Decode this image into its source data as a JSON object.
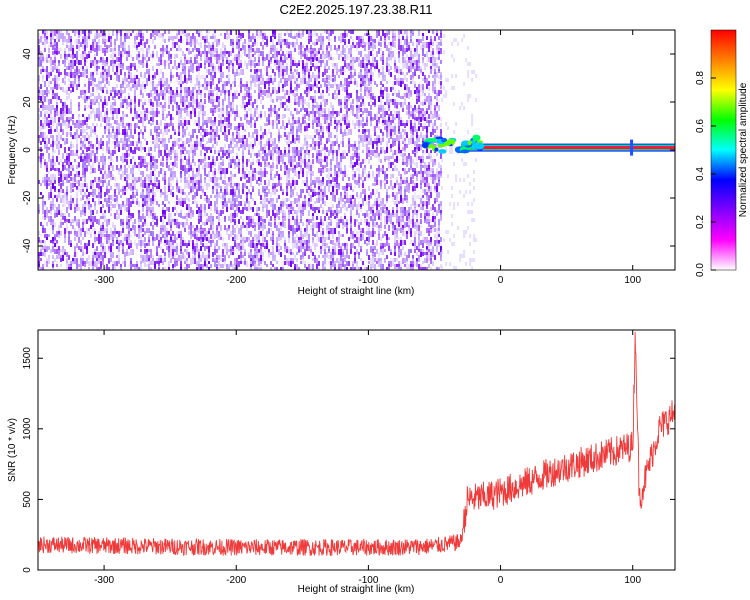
{
  "title": "C2E2.2025.197.23.38.R11",
  "colors": {
    "snr_line": "#f03a3a",
    "axis": "#000000",
    "background": "#ffffff"
  },
  "chart_data": [
    {
      "type": "heatmap",
      "xlabel": "Height of straight line (km)",
      "ylabel": "Frequency (Hz)",
      "xlim": [
        -350,
        132
      ],
      "ylim": [
        -50,
        50
      ],
      "xticks": [
        -300,
        -200,
        -100,
        0,
        100
      ],
      "yticks": [
        -40,
        -20,
        0,
        20,
        40
      ],
      "grid": false,
      "noise_region_x": [
        -350,
        -45
      ],
      "signal_track": {
        "x_range": [
          -60,
          132
        ],
        "frequency": 1
      },
      "colorbar": {
        "label": "Normalized spectral amplitude",
        "range": [
          0,
          1
        ],
        "ticks": [
          0.0,
          0.2,
          0.4,
          0.6,
          0.8
        ],
        "tick_labels": [
          "0.0",
          "0.2",
          "0.4",
          "0.6",
          "0.8"
        ],
        "colormap": [
          "#ffffff",
          "#ff00ff",
          "#8000ff",
          "#0000ff",
          "#00ffff",
          "#00ff00",
          "#ffff00",
          "#ff8000",
          "#ff0000"
        ]
      }
    },
    {
      "type": "line",
      "xlabel": "Height of straight line (km)",
      "ylabel": "SNR (10 * v/v)",
      "xlim": [
        -350,
        132
      ],
      "ylim": [
        0,
        1700
      ],
      "xticks": [
        -300,
        -200,
        -100,
        0,
        100
      ],
      "yticks": [
        0,
        500,
        1000,
        1500
      ],
      "grid": false,
      "series": [
        {
          "x": [
            -350,
            -320,
            -280,
            -240,
            -200,
            -160,
            -120,
            -80,
            -50,
            -30,
            -25,
            -10,
            0,
            20,
            40,
            60,
            80,
            100,
            102,
            105,
            120,
            132
          ],
          "y": [
            180,
            175,
            170,
            165,
            160,
            160,
            160,
            160,
            170,
            200,
            500,
            520,
            550,
            620,
            700,
            760,
            820,
            880,
            1700,
            500,
            1000,
            1120
          ]
        }
      ]
    }
  ]
}
